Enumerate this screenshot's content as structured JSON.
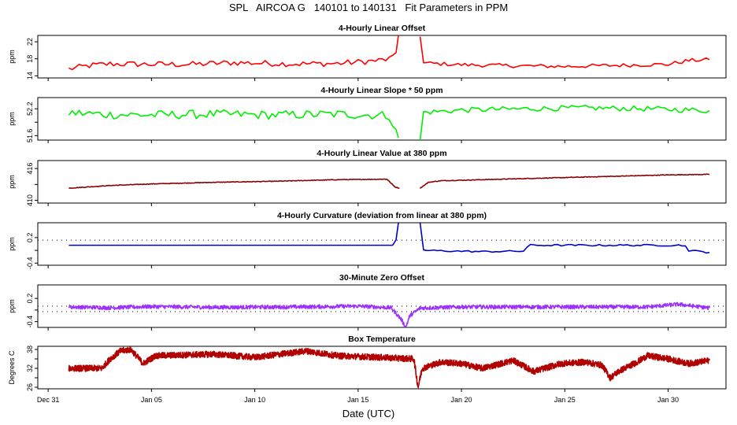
{
  "title": "SPL   AIRCOA G   140101 to 140131   Fit Parameters in PPM",
  "xlabel": "Date (UTC)",
  "colors": {
    "offset": "#ff0000",
    "slope": "#00ee00",
    "value": "#8b0000",
    "curvature": "#0000cc",
    "zero": "#9b30ff",
    "temperature": "#b00000"
  },
  "chart_data": {
    "type": "line",
    "x_unit": "days since Dec 31 (UTC)",
    "xlim": [
      -0.5,
      32.8
    ],
    "x_ticks": [
      {
        "value": 0,
        "label": "Dec 31"
      },
      {
        "value": 5,
        "label": "Jan 05"
      },
      {
        "value": 10,
        "label": "Jan 10"
      },
      {
        "value": 15,
        "label": "Jan 15"
      },
      {
        "value": 20,
        "label": "Jan 20"
      },
      {
        "value": 25,
        "label": "Jan 25"
      },
      {
        "value": 30,
        "label": "Jan 30"
      }
    ],
    "data_gap": [
      17.0,
      18.0
    ],
    "panels": [
      {
        "id": "offset",
        "title": "4-Hourly Linear Offset",
        "ylabel": "ppm",
        "ylim": [
          13.5,
          23.5
        ],
        "y_ticks": [
          14,
          18,
          22
        ],
        "y_tick_labels": [
          "14",
          "18",
          "22"
        ],
        "series": [
          {
            "name": "Linear Offset",
            "color_key": "offset",
            "step_days": 0.1667,
            "segments": [
              {
                "knots": [
                  [
                    1,
                    15.6
                  ],
                  [
                    2,
                    16.4
                  ],
                  [
                    3,
                    16.8
                  ],
                  [
                    5,
                    16.7
                  ],
                  [
                    7,
                    16.7
                  ],
                  [
                    9,
                    17.1
                  ],
                  [
                    12,
                    16.8
                  ],
                  [
                    14,
                    16.9
                  ],
                  [
                    16,
                    17.6
                  ],
                  [
                    16.8,
                    18.2
                  ],
                  [
                    16.95,
                    23.5
                  ]
                ],
                "noise": 0.7
              },
              {
                "knots": [
                  [
                    18.0,
                    23.5
                  ],
                  [
                    18.15,
                    17.0
                  ],
                  [
                    20,
                    16.6
                  ],
                  [
                    22,
                    16.4
                  ],
                  [
                    25,
                    16.2
                  ],
                  [
                    28,
                    16.5
                  ],
                  [
                    30,
                    16.7
                  ],
                  [
                    31,
                    17.6
                  ],
                  [
                    32,
                    17.8
                  ]
                ],
                "noise": 0.45
              }
            ]
          }
        ]
      },
      {
        "id": "slope",
        "title": "4-Hourly Linear Slope * 50 ppm",
        "ylabel": "ppm",
        "ylim": [
          51.5,
          52.45
        ],
        "y_ticks": [
          51.6,
          51.9,
          52.2
        ],
        "y_tick_labels": [
          "51.6",
          "",
          "52.2"
        ],
        "series": [
          {
            "name": "Linear Slope * 50",
            "color_key": "slope",
            "step_days": 0.1667,
            "segments": [
              {
                "knots": [
                  [
                    1,
                    52.11
                  ],
                  [
                    3,
                    52.07
                  ],
                  [
                    5,
                    52.06
                  ],
                  [
                    8,
                    52.08
                  ],
                  [
                    11,
                    52.06
                  ],
                  [
                    14,
                    52.08
                  ],
                  [
                    16.5,
                    52.05
                  ],
                  [
                    16.95,
                    51.55
                  ]
                ],
                "noise": 0.1
              },
              {
                "knots": [
                  [
                    18.0,
                    51.5
                  ],
                  [
                    18.15,
                    52.12
                  ],
                  [
                    20,
                    52.17
                  ],
                  [
                    23,
                    52.2
                  ],
                  [
                    26,
                    52.22
                  ],
                  [
                    29,
                    52.2
                  ],
                  [
                    32,
                    52.16
                  ]
                ],
                "noise": 0.06
              }
            ]
          }
        ]
      },
      {
        "id": "value",
        "title": "4-Hourly Linear Value at 380 ppm",
        "ylabel": "ppm",
        "ylim": [
          409.5,
          417.5
        ],
        "y_ticks": [
          410,
          413,
          416
        ],
        "y_tick_labels": [
          "410",
          "",
          "416"
        ],
        "series": [
          {
            "name": "Linear Value at 380",
            "color_key": "value",
            "step_days": 0.0417,
            "segments": [
              {
                "knots": [
                  [
                    1,
                    412.3
                  ],
                  [
                    3,
                    412.8
                  ],
                  [
                    5,
                    413.1
                  ],
                  [
                    8,
                    413.4
                  ],
                  [
                    11,
                    413.6
                  ],
                  [
                    14,
                    413.9
                  ],
                  [
                    16.4,
                    414.0
                  ],
                  [
                    16.6,
                    413.2
                  ],
                  [
                    16.8,
                    412.5
                  ],
                  [
                    17.0,
                    412.3
                  ]
                ],
                "noise": 0.06
              },
              {
                "knots": [
                  [
                    18.0,
                    412.3
                  ],
                  [
                    18.4,
                    413.4
                  ],
                  [
                    19,
                    413.7
                  ],
                  [
                    21,
                    413.9
                  ],
                  [
                    24,
                    414.2
                  ],
                  [
                    27,
                    414.5
                  ],
                  [
                    30,
                    414.8
                  ],
                  [
                    32,
                    414.9
                  ]
                ],
                "noise": 0.06
              }
            ]
          }
        ]
      },
      {
        "id": "curvature",
        "title": "4-Hourly Curvature (deviation from linear at 380 ppm)",
        "ylabel": "ppm",
        "ylim": [
          -0.45,
          0.55
        ],
        "y_ticks": [
          -0.4,
          -0.1,
          0.2
        ],
        "y_tick_labels": [
          "-0.4",
          "",
          "0.2"
        ],
        "reference_line": 0.14,
        "series": [
          {
            "name": "Curvature",
            "color_key": "curvature",
            "step_days": 0.1667,
            "segments": [
              {
                "knots": [
                  [
                    1,
                    0.02
                  ],
                  [
                    16.8,
                    0.02
                  ],
                  [
                    16.95,
                    0.55
                  ]
                ],
                "noise": 0.0
              },
              {
                "knots": [
                  [
                    18.0,
                    0.55
                  ],
                  [
                    18.15,
                    -0.1
                  ],
                  [
                    19,
                    -0.11
                  ],
                  [
                    21,
                    -0.13
                  ],
                  [
                    22.5,
                    -0.12
                  ],
                  [
                    23.1,
                    -0.12
                  ],
                  [
                    23.2,
                    0.02
                  ],
                  [
                    30.8,
                    0.02
                  ],
                  [
                    31,
                    -0.1
                  ],
                  [
                    32,
                    -0.15
                  ]
                ],
                "noise": 0.02
              }
            ]
          }
        ]
      },
      {
        "id": "zero",
        "title": "30-Minute Zero Offset",
        "ylabel": "ppm",
        "ylim": [
          -0.55,
          0.55
        ],
        "y_ticks": [
          -0.4,
          -0.1,
          0.2
        ],
        "y_tick_labels": [
          "-0.4",
          "",
          "0.2"
        ],
        "reference_lines": [
          0.0,
          -0.14
        ],
        "series": [
          {
            "name": "Zero Offset",
            "color_key": "zero",
            "step_days": 0.0208,
            "segments": [
              {
                "knots": [
                  [
                    1,
                    -0.02
                  ],
                  [
                    3,
                    -0.04
                  ],
                  [
                    5,
                    -0.01
                  ],
                  [
                    8,
                    -0.03
                  ],
                  [
                    12,
                    -0.02
                  ],
                  [
                    15,
                    0.0
                  ],
                  [
                    16.6,
                    -0.04
                  ],
                  [
                    17.1,
                    -0.35
                  ],
                  [
                    17.3,
                    -0.55
                  ],
                  [
                    17.5,
                    -0.25
                  ],
                  [
                    18,
                    -0.05
                  ],
                  [
                    20,
                    -0.02
                  ],
                  [
                    25,
                    -0.02
                  ],
                  [
                    29,
                    -0.02
                  ],
                  [
                    30.5,
                    0.05
                  ],
                  [
                    32,
                    -0.05
                  ]
                ],
                "noise": 0.05
              }
            ]
          }
        ]
      },
      {
        "id": "temperature",
        "title": "Box Temperature",
        "ylabel": "Degrees C",
        "ylim": [
          25.5,
          39
        ],
        "y_ticks": [
          26,
          29,
          32,
          35,
          38
        ],
        "y_tick_labels": [
          "26",
          "",
          "32",
          "",
          "38"
        ],
        "series": [
          {
            "name": "Box Temperature",
            "color_key": "temperature",
            "step_days": 0.0104,
            "segments": [
              {
                "knots": [
                  [
                    1,
                    32
                  ],
                  [
                    2.6,
                    32
                  ],
                  [
                    3,
                    35
                  ],
                  [
                    3.5,
                    37.5
                  ],
                  [
                    4,
                    38
                  ],
                  [
                    4.6,
                    33.5
                  ],
                  [
                    5.2,
                    36
                  ],
                  [
                    8,
                    36.5
                  ],
                  [
                    10,
                    35.5
                  ],
                  [
                    12.5,
                    37.5
                  ],
                  [
                    14,
                    36
                  ],
                  [
                    16,
                    35.5
                  ],
                  [
                    17.7,
                    35
                  ],
                  [
                    17.9,
                    26
                  ],
                  [
                    18.1,
                    32
                  ],
                  [
                    19,
                    34
                  ],
                  [
                    20,
                    33.5
                  ],
                  [
                    21,
                    32
                  ],
                  [
                    22.5,
                    34.5
                  ],
                  [
                    23.5,
                    31
                  ],
                  [
                    24.8,
                    33.5
                  ],
                  [
                    26,
                    34
                  ],
                  [
                    26.8,
                    33
                  ],
                  [
                    27.2,
                    29
                  ],
                  [
                    27.6,
                    31
                  ],
                  [
                    28.5,
                    34
                  ],
                  [
                    29,
                    36
                  ],
                  [
                    30,
                    35
                  ],
                  [
                    31,
                    33.5
                  ],
                  [
                    32,
                    34.5
                  ]
                ],
                "noise": 1.0
              }
            ]
          }
        ]
      }
    ]
  }
}
